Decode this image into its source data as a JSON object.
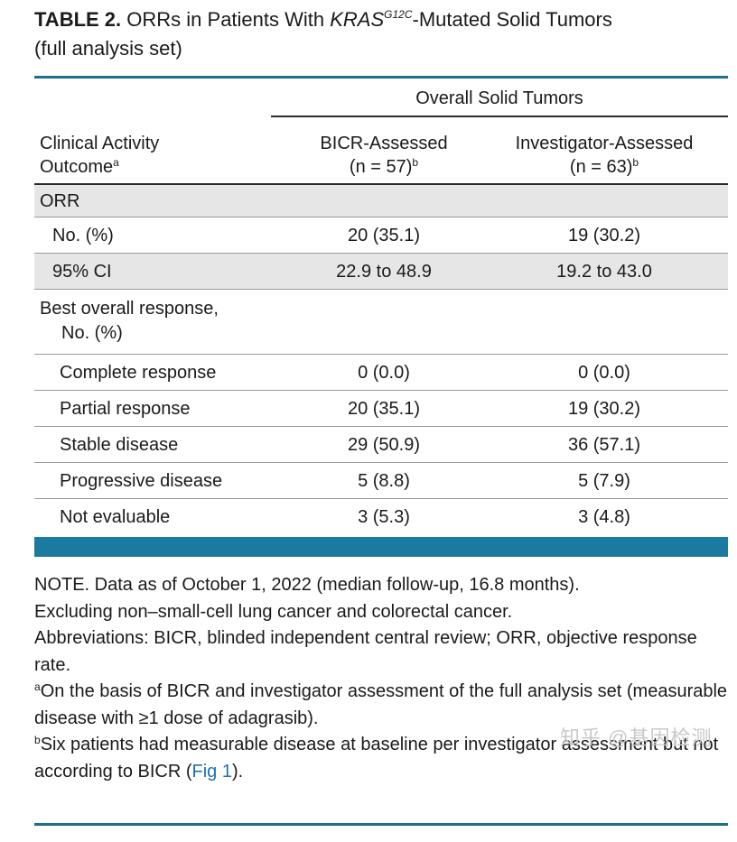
{
  "caption": {
    "label": "TABLE 2.",
    "text_before": "ORRs in Patients With ",
    "gene": "KRAS",
    "gene_sup": "G12C",
    "text_after": "-Mutated Solid Tumors",
    "line2": "(full analysis set)"
  },
  "table": {
    "spanner": "Overall Solid Tumors",
    "header": {
      "col1_line1": "Clinical Activity",
      "col1_line2": "Outcome",
      "col1_sup": "a",
      "col2_line1": "BICR-Assessed",
      "col2_line2": "(n = 57)",
      "col2_sup": "b",
      "col3_line1": "Investigator-Assessed",
      "col3_line2": "(n = 63)",
      "col3_sup": "b"
    },
    "rows": [
      {
        "label": "ORR",
        "bicr": "",
        "inv": ""
      },
      {
        "label": "No. (%)",
        "bicr": "20 (35.1)",
        "inv": "19 (30.2)"
      },
      {
        "label": "95% CI",
        "bicr": "22.9 to 48.9",
        "inv": "19.2 to 43.0"
      },
      {
        "label": "Best overall response,",
        "label2": "No. (%)",
        "bicr": "",
        "inv": ""
      },
      {
        "label": "Complete response",
        "bicr": "0 (0.0)",
        "inv": "0 (0.0)"
      },
      {
        "label": "Partial response",
        "bicr": "20 (35.1)",
        "inv": "19 (30.2)"
      },
      {
        "label": "Stable disease",
        "bicr": "29 (50.9)",
        "inv": "36 (57.1)"
      },
      {
        "label": "Progressive disease",
        "bicr": "5 (8.8)",
        "inv": "5 (7.9)"
      },
      {
        "label": "Not evaluable",
        "bicr": "3 (5.3)",
        "inv": "3 (4.8)"
      }
    ]
  },
  "notes": {
    "note_line1": "NOTE. Data as of October 1, 2022 (median follow-up, 16.8 months).",
    "note_line2": "Excluding non–small-cell lung cancer and colorectal cancer.",
    "abbrev": "Abbreviations: BICR, blinded independent central review; ORR, objective response rate.",
    "fn_a_mark": "a",
    "fn_a": "On the basis of BICR and investigator assessment of the full analysis set (measurable disease with ≥1 dose of adagrasib).",
    "fn_b_mark": "b",
    "fn_b_text": "Six patients had measurable disease at baseline per investigator assessment but not according to BICR (",
    "fn_b_link": "Fig 1",
    "fn_b_end": ")."
  },
  "watermark": "知乎 @基因检测",
  "colors": {
    "accent": "#1b7aa0",
    "row_shade": "#e6e6e6",
    "link": "#1f6fb2"
  }
}
